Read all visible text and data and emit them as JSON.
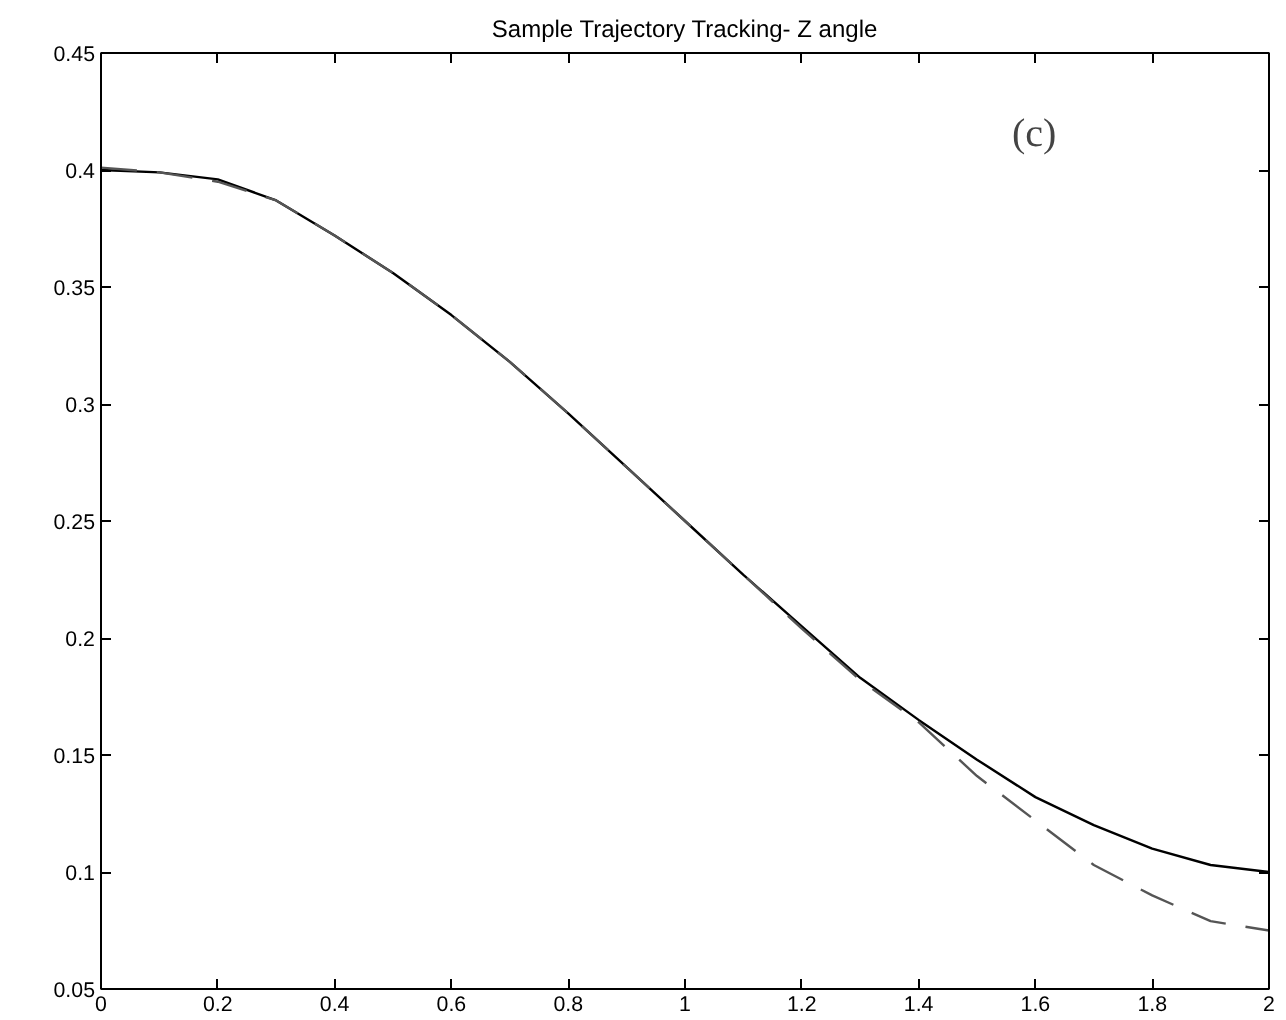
{
  "chart_data": {
    "type": "line",
    "title": "Sample Trajectory Tracking- Z angle",
    "annotations": [
      "(c)"
    ],
    "x": [
      0,
      0.1,
      0.2,
      0.3,
      0.4,
      0.5,
      0.6,
      0.7,
      0.8,
      0.9,
      1.0,
      1.1,
      1.2,
      1.3,
      1.4,
      1.5,
      1.6,
      1.7,
      1.8,
      1.9,
      2.0
    ],
    "series": [
      {
        "color": "#000000",
        "line_style": "solid",
        "values": [
          0.4,
          0.399,
          0.396,
          0.387,
          0.372,
          0.356,
          0.338,
          0.318,
          0.296,
          0.273,
          0.25,
          0.227,
          0.205,
          0.183,
          0.165,
          0.148,
          0.132,
          0.12,
          0.11,
          0.103,
          0.1
        ]
      },
      {
        "color": "#555555",
        "line_style": "dashed",
        "values": [
          0.401,
          0.399,
          0.395,
          0.387,
          0.372,
          0.356,
          0.338,
          0.318,
          0.296,
          0.273,
          0.25,
          0.227,
          0.204,
          0.182,
          0.164,
          0.141,
          0.122,
          0.103,
          0.09,
          0.079,
          0.075
        ]
      }
    ],
    "xlim": [
      0,
      2
    ],
    "xticks": [
      0,
      0.2,
      0.4,
      0.6,
      0.8,
      1,
      1.2,
      1.4,
      1.6,
      1.8,
      2
    ],
    "ylim": [
      0.05,
      0.45
    ],
    "yticks": [
      0.05,
      0.1,
      0.15,
      0.2,
      0.25,
      0.3,
      0.35,
      0.4,
      0.45
    ],
    "grid": false,
    "marker": "none"
  }
}
